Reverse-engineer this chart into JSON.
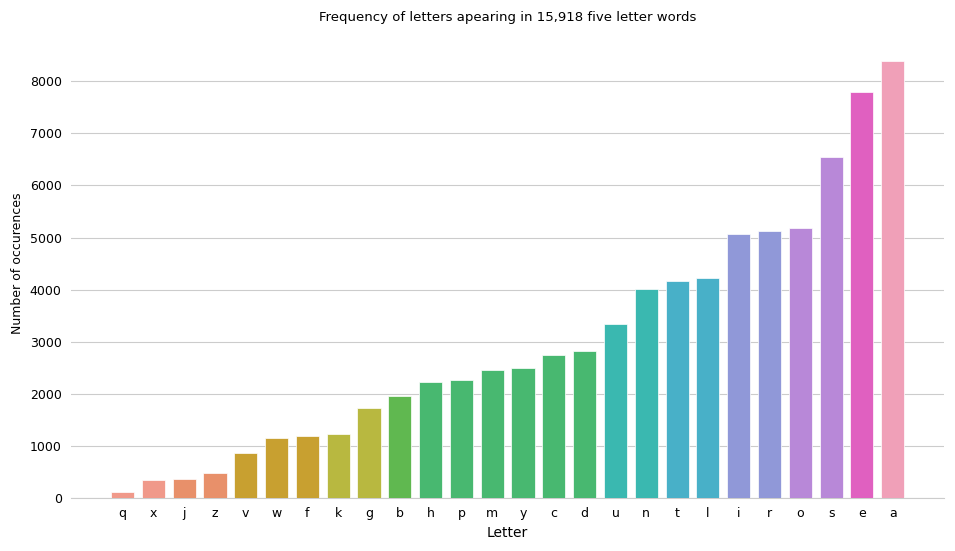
{
  "letters": [
    "q",
    "x",
    "j",
    "z",
    "v",
    "w",
    "f",
    "k",
    "g",
    "b",
    "h",
    "p",
    "m",
    "y",
    "c",
    "d",
    "u",
    "n",
    "t",
    "l",
    "i",
    "r",
    "o",
    "s",
    "e",
    "a"
  ],
  "values": [
    110,
    340,
    360,
    465,
    860,
    1150,
    1175,
    1230,
    1730,
    1960,
    2230,
    2255,
    2460,
    2490,
    2740,
    2820,
    3330,
    4010,
    4160,
    4230,
    5060,
    5130,
    5190,
    6540,
    7800,
    8390
  ],
  "colors": [
    "#f0998a",
    "#f0998a",
    "#e8906a",
    "#e8906a",
    "#c8a030",
    "#c8a030",
    "#c8a030",
    "#b8b840",
    "#b8b840",
    "#60b850",
    "#48b870",
    "#48b870",
    "#48b870",
    "#48b870",
    "#48b870",
    "#48b870",
    "#3ab8b0",
    "#3ab8b0",
    "#48b0c8",
    "#48b0c8",
    "#9098d8",
    "#9098d8",
    "#b888d8",
    "#b888d8",
    "#e060c0",
    "#f0a0b8"
  ],
  "title": "Frequency of letters apearing in 15,918 five letter words",
  "xlabel": "Letter",
  "ylabel": "Number of occurences",
  "ylim": [
    0,
    9000
  ],
  "yticks": [
    0,
    1000,
    2000,
    3000,
    4000,
    5000,
    6000,
    7000,
    8000
  ],
  "background_color": "#ffffff",
  "grid_color": "#cccccc"
}
